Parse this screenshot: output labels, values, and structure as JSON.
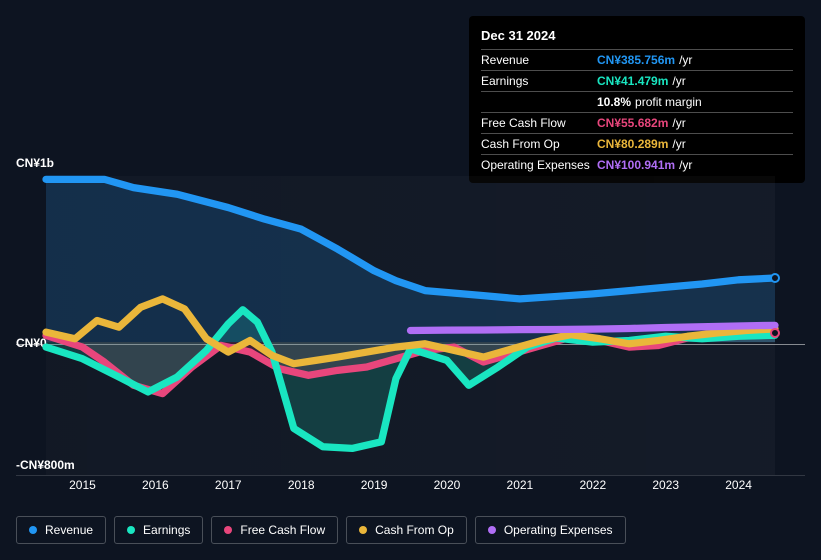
{
  "tooltip": {
    "title": "Dec 31 2024",
    "rows": [
      {
        "label": "Revenue",
        "value": "CN¥385.756m",
        "unit": "/yr",
        "color": "#2196f3"
      },
      {
        "label": "Earnings",
        "value": "CN¥41.479m",
        "unit": "/yr",
        "color": "#19e6c1"
      },
      {
        "label": "",
        "value": "10.8%",
        "unit": "profit margin",
        "color": "#ffffff"
      },
      {
        "label": "Free Cash Flow",
        "value": "CN¥55.682m",
        "unit": "/yr",
        "color": "#e8467c"
      },
      {
        "label": "Cash From Op",
        "value": "CN¥80.289m",
        "unit": "/yr",
        "color": "#eab63a"
      },
      {
        "label": "Operating Expenses",
        "value": "CN¥100.941m",
        "unit": "/yr",
        "color": "#b06ef5"
      }
    ]
  },
  "chart": {
    "type": "line",
    "y_labels": {
      "top": "CN¥1b",
      "zero": "CN¥0",
      "bottom": "-CN¥800m"
    },
    "y_domain": [
      -800,
      1000
    ],
    "x_years": [
      "2015",
      "2016",
      "2017",
      "2018",
      "2019",
      "2020",
      "2021",
      "2022",
      "2023",
      "2024"
    ],
    "background_color": "#0d1421",
    "grid_color": "rgba(255,255,255,0.15)",
    "zero_line_color": "rgba(255,255,255,0.5)",
    "line_width": 2.2,
    "area_opacity": 0.18,
    "series": {
      "revenue": {
        "label": "Revenue",
        "color": "#2196f3",
        "fill": true,
        "points": [
          [
            0.0,
            980
          ],
          [
            0.08,
            980
          ],
          [
            0.12,
            930
          ],
          [
            0.18,
            890
          ],
          [
            0.25,
            810
          ],
          [
            0.3,
            740
          ],
          [
            0.35,
            680
          ],
          [
            0.4,
            560
          ],
          [
            0.45,
            430
          ],
          [
            0.48,
            370
          ],
          [
            0.52,
            310
          ],
          [
            0.56,
            295
          ],
          [
            0.6,
            280
          ],
          [
            0.65,
            260
          ],
          [
            0.7,
            275
          ],
          [
            0.75,
            290
          ],
          [
            0.8,
            310
          ],
          [
            0.85,
            330
          ],
          [
            0.9,
            350
          ],
          [
            0.95,
            375
          ],
          [
            1.0,
            386
          ]
        ]
      },
      "earnings": {
        "label": "Earnings",
        "color": "#19e6c1",
        "fill": true,
        "points": [
          [
            0.0,
            -30
          ],
          [
            0.05,
            -100
          ],
          [
            0.1,
            -210
          ],
          [
            0.14,
            -300
          ],
          [
            0.18,
            -210
          ],
          [
            0.22,
            -50
          ],
          [
            0.25,
            110
          ],
          [
            0.27,
            195
          ],
          [
            0.29,
            120
          ],
          [
            0.31,
            -60
          ],
          [
            0.34,
            -520
          ],
          [
            0.38,
            -630
          ],
          [
            0.42,
            -640
          ],
          [
            0.46,
            -600
          ],
          [
            0.48,
            -220
          ],
          [
            0.5,
            -40
          ],
          [
            0.55,
            -110
          ],
          [
            0.58,
            -260
          ],
          [
            0.62,
            -150
          ],
          [
            0.66,
            -30
          ],
          [
            0.7,
            25
          ],
          [
            0.75,
            0
          ],
          [
            0.8,
            10
          ],
          [
            0.85,
            35
          ],
          [
            0.9,
            20
          ],
          [
            0.95,
            35
          ],
          [
            1.0,
            41
          ]
        ]
      },
      "fcf": {
        "label": "Free Cash Flow",
        "color": "#e8467c",
        "fill": true,
        "points": [
          [
            0.0,
            40
          ],
          [
            0.05,
            -30
          ],
          [
            0.08,
            -120
          ],
          [
            0.12,
            -260
          ],
          [
            0.16,
            -310
          ],
          [
            0.2,
            -150
          ],
          [
            0.24,
            -20
          ],
          [
            0.28,
            -60
          ],
          [
            0.32,
            -160
          ],
          [
            0.36,
            -200
          ],
          [
            0.4,
            -170
          ],
          [
            0.44,
            -150
          ],
          [
            0.48,
            -100
          ],
          [
            0.52,
            -50
          ],
          [
            0.56,
            -30
          ],
          [
            0.6,
            -120
          ],
          [
            0.64,
            -70
          ],
          [
            0.68,
            -20
          ],
          [
            0.72,
            30
          ],
          [
            0.76,
            10
          ],
          [
            0.8,
            -30
          ],
          [
            0.84,
            -20
          ],
          [
            0.88,
            25
          ],
          [
            0.92,
            40
          ],
          [
            0.96,
            50
          ],
          [
            1.0,
            56
          ]
        ]
      },
      "cfo": {
        "label": "Cash From Op",
        "color": "#eab63a",
        "fill": false,
        "points": [
          [
            0.0,
            60
          ],
          [
            0.04,
            20
          ],
          [
            0.07,
            130
          ],
          [
            0.1,
            90
          ],
          [
            0.13,
            210
          ],
          [
            0.16,
            260
          ],
          [
            0.19,
            200
          ],
          [
            0.22,
            20
          ],
          [
            0.25,
            -60
          ],
          [
            0.28,
            10
          ],
          [
            0.31,
            -80
          ],
          [
            0.34,
            -130
          ],
          [
            0.37,
            -110
          ],
          [
            0.4,
            -90
          ],
          [
            0.44,
            -60
          ],
          [
            0.48,
            -30
          ],
          [
            0.52,
            -10
          ],
          [
            0.56,
            -50
          ],
          [
            0.6,
            -90
          ],
          [
            0.64,
            -40
          ],
          [
            0.68,
            10
          ],
          [
            0.72,
            45
          ],
          [
            0.76,
            20
          ],
          [
            0.8,
            -10
          ],
          [
            0.84,
            10
          ],
          [
            0.88,
            35
          ],
          [
            0.92,
            55
          ],
          [
            0.96,
            70
          ],
          [
            1.0,
            80
          ]
        ]
      },
      "opex": {
        "label": "Operating Expenses",
        "color": "#b06ef5",
        "fill": false,
        "points": [
          [
            0.5,
            70
          ],
          [
            0.55,
            72
          ],
          [
            0.6,
            73
          ],
          [
            0.65,
            75
          ],
          [
            0.7,
            76
          ],
          [
            0.75,
            78
          ],
          [
            0.8,
            82
          ],
          [
            0.85,
            88
          ],
          [
            0.9,
            92
          ],
          [
            0.95,
            97
          ],
          [
            1.0,
            101
          ]
        ]
      }
    },
    "legend_order": [
      "revenue",
      "earnings",
      "fcf",
      "cfo",
      "opex"
    ]
  }
}
